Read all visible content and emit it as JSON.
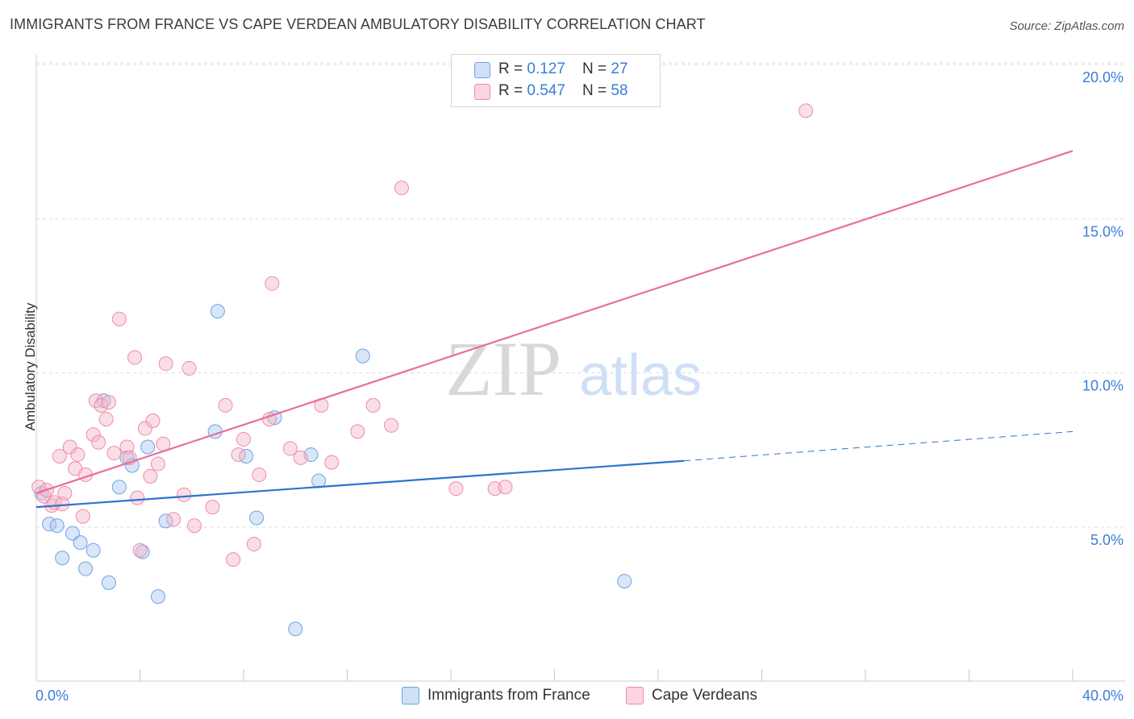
{
  "header": {
    "title": "IMMIGRANTS FROM FRANCE VS CAPE VERDEAN AMBULATORY DISABILITY CORRELATION CHART",
    "source": "Source: ZipAtlas.com"
  },
  "watermark": {
    "zip": "ZIP",
    "atlas": "atlas"
  },
  "legend_top": {
    "rows": [
      {
        "r_label": "R = ",
        "r_value": "0.127",
        "n_label": "N = ",
        "n_value": "27",
        "color": "#a9c8f0"
      },
      {
        "r_label": "R = ",
        "r_value": "0.547",
        "n_label": "N = ",
        "n_value": "58",
        "color": "#f5b5c8"
      }
    ]
  },
  "legend_bottom": [
    {
      "label": "Immigrants from France",
      "color": "#a9c8f0"
    },
    {
      "label": "Cape Verdeans",
      "color": "#f5b5c8"
    }
  ],
  "chart_data": {
    "type": "scatter",
    "title": "IMMIGRANTS FROM FRANCE VS CAPE VERDEAN AMBULATORY DISABILITY CORRELATION CHART",
    "xlabel": "",
    "ylabel": "Ambulatory Disability",
    "xlim": [
      0,
      40
    ],
    "ylim": [
      0,
      20.8
    ],
    "x_tick_labels": [
      "0.0%",
      "40.0%"
    ],
    "y_ticks": [
      5,
      10,
      15,
      20
    ],
    "y_tick_labels": [
      "5.0%",
      "10.0%",
      "15.0%",
      "20.0%"
    ],
    "grid": true,
    "legend_placement": "top-center",
    "series": [
      {
        "name": "Immigrants from France",
        "color": "#6fa3e6",
        "fill": "#a9c8f0",
        "line_color": "#2f73cc",
        "trend": {
          "x0": 0,
          "y0": 5.65,
          "x1": 25,
          "y1": 7.15,
          "dash_to_x": 40,
          "dash_to_y": 8.1
        },
        "points": [
          [
            0.2,
            6.1
          ],
          [
            0.5,
            5.1
          ],
          [
            0.8,
            5.05
          ],
          [
            1.0,
            4.0
          ],
          [
            1.4,
            4.8
          ],
          [
            1.7,
            4.5
          ],
          [
            1.9,
            3.65
          ],
          [
            2.2,
            4.25
          ],
          [
            2.6,
            9.1
          ],
          [
            2.8,
            3.2
          ],
          [
            3.2,
            6.3
          ],
          [
            3.5,
            7.25
          ],
          [
            3.7,
            7.0
          ],
          [
            4.1,
            4.2
          ],
          [
            4.3,
            7.6
          ],
          [
            4.7,
            2.75
          ],
          [
            5.0,
            5.2
          ],
          [
            6.9,
            8.1
          ],
          [
            7.0,
            12.0
          ],
          [
            8.1,
            7.3
          ],
          [
            8.5,
            5.3
          ],
          [
            9.2,
            8.55
          ],
          [
            10.0,
            1.7
          ],
          [
            10.6,
            7.35
          ],
          [
            10.9,
            6.5
          ],
          [
            12.6,
            10.55
          ],
          [
            22.7,
            3.25
          ]
        ]
      },
      {
        "name": "Cape Verdeans",
        "color": "#f08aa8",
        "fill": "#f5b5c8",
        "line_color": "#e8709a",
        "trend": {
          "x0": 0,
          "y0": 6.1,
          "x1": 40,
          "y1": 17.2
        },
        "points": [
          [
            0.1,
            6.3
          ],
          [
            0.3,
            6.0
          ],
          [
            0.6,
            5.7
          ],
          [
            0.7,
            5.8
          ],
          [
            0.9,
            7.3
          ],
          [
            1.1,
            6.1
          ],
          [
            1.3,
            7.6
          ],
          [
            1.5,
            6.9
          ],
          [
            1.6,
            7.35
          ],
          [
            1.8,
            5.35
          ],
          [
            1.9,
            6.7
          ],
          [
            2.2,
            8.0
          ],
          [
            2.3,
            9.1
          ],
          [
            2.4,
            7.75
          ],
          [
            2.5,
            8.95
          ],
          [
            2.7,
            8.5
          ],
          [
            2.8,
            9.05
          ],
          [
            3.0,
            7.4
          ],
          [
            3.2,
            11.75
          ],
          [
            3.5,
            7.6
          ],
          [
            3.6,
            7.25
          ],
          [
            3.8,
            10.5
          ],
          [
            3.9,
            5.95
          ],
          [
            4.0,
            4.25
          ],
          [
            4.2,
            8.2
          ],
          [
            4.4,
            6.65
          ],
          [
            4.5,
            8.45
          ],
          [
            4.7,
            7.05
          ],
          [
            4.9,
            7.7
          ],
          [
            5.0,
            10.3
          ],
          [
            5.3,
            5.25
          ],
          [
            5.7,
            6.05
          ],
          [
            5.9,
            10.15
          ],
          [
            6.1,
            5.05
          ],
          [
            6.8,
            5.65
          ],
          [
            7.3,
            8.95
          ],
          [
            7.6,
            3.95
          ],
          [
            7.8,
            7.35
          ],
          [
            8.0,
            7.85
          ],
          [
            8.4,
            4.45
          ],
          [
            8.6,
            6.7
          ],
          [
            9.0,
            8.5
          ],
          [
            9.1,
            12.9
          ],
          [
            9.8,
            7.55
          ],
          [
            10.2,
            7.25
          ],
          [
            11.0,
            8.95
          ],
          [
            11.4,
            7.1
          ],
          [
            12.4,
            8.1
          ],
          [
            13.0,
            8.95
          ],
          [
            13.7,
            8.3
          ],
          [
            14.1,
            16.0
          ],
          [
            16.2,
            6.25
          ],
          [
            17.7,
            6.25
          ],
          [
            18.1,
            6.3
          ],
          [
            22.4,
            19.8
          ],
          [
            29.7,
            18.5
          ],
          [
            0.4,
            6.2
          ],
          [
            1.0,
            5.75
          ]
        ]
      }
    ]
  }
}
